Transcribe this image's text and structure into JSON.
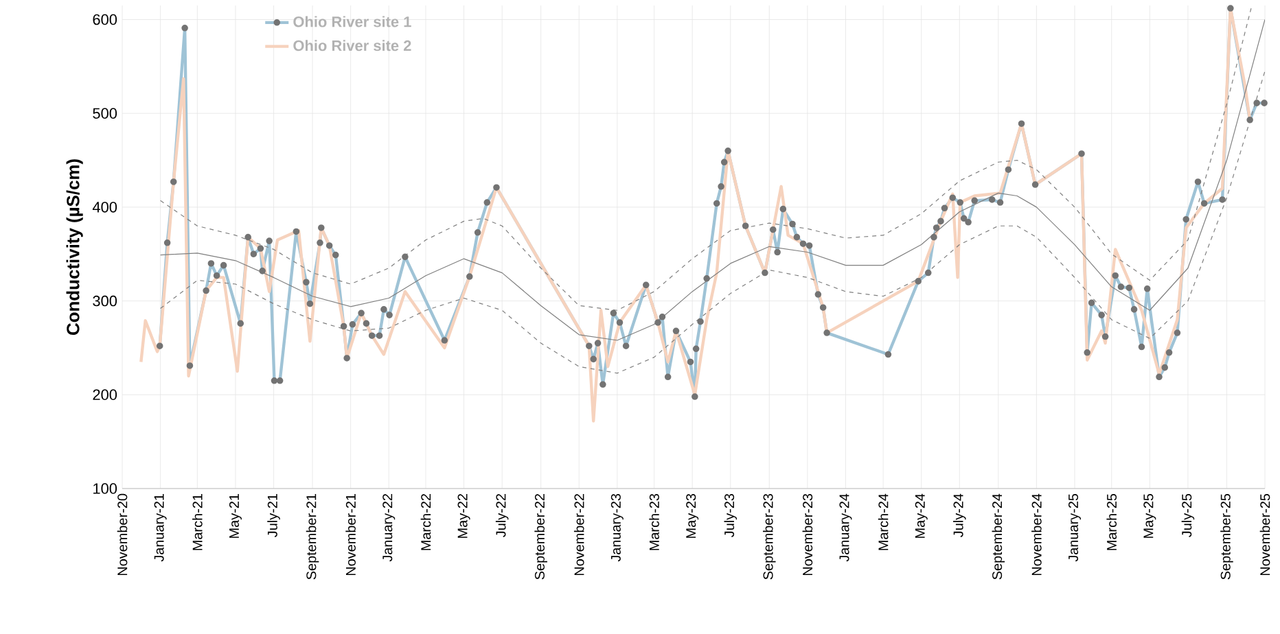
{
  "chart_data": {
    "type": "line",
    "ylabel": "Conductivity (µS/cm)",
    "grid": true,
    "legend": "top left",
    "xlim": [
      "2020-11-01",
      "2025-11-01"
    ],
    "ylim": [
      100,
      615
    ],
    "yticks": [
      100,
      200,
      300,
      400,
      500,
      600
    ],
    "xticks": [
      {
        "value": "2020-11-01",
        "label": "November-20"
      },
      {
        "value": "2021-01-01",
        "label": "January-21"
      },
      {
        "value": "2021-03-01",
        "label": "March-21"
      },
      {
        "value": "2021-05-01",
        "label": "May-21"
      },
      {
        "value": "2021-07-01",
        "label": "July-21"
      },
      {
        "value": "2021-09-01",
        "label": "September-21"
      },
      {
        "value": "2021-11-01",
        "label": "November-21"
      },
      {
        "value": "2022-01-01",
        "label": "January-22"
      },
      {
        "value": "2022-03-01",
        "label": "March-22"
      },
      {
        "value": "2022-05-01",
        "label": "May-22"
      },
      {
        "value": "2022-07-01",
        "label": "July-22"
      },
      {
        "value": "2022-09-01",
        "label": "September-22"
      },
      {
        "value": "2022-11-01",
        "label": "November-22"
      },
      {
        "value": "2023-01-01",
        "label": "January-23"
      },
      {
        "value": "2023-03-01",
        "label": "March-23"
      },
      {
        "value": "2023-05-01",
        "label": "May-23"
      },
      {
        "value": "2023-07-01",
        "label": "July-23"
      },
      {
        "value": "2023-09-01",
        "label": "September-23"
      },
      {
        "value": "2023-11-01",
        "label": "November-23"
      },
      {
        "value": "2024-01-01",
        "label": "January-24"
      },
      {
        "value": "2024-03-01",
        "label": "March-24"
      },
      {
        "value": "2024-05-01",
        "label": "May-24"
      },
      {
        "value": "2024-07-01",
        "label": "July-24"
      },
      {
        "value": "2024-09-01",
        "label": "September-24"
      },
      {
        "value": "2024-11-01",
        "label": "November-24"
      },
      {
        "value": "2025-01-01",
        "label": "January-25"
      },
      {
        "value": "2025-03-01",
        "label": "March-25"
      },
      {
        "value": "2025-05-01",
        "label": "May-25"
      },
      {
        "value": "2025-07-01",
        "label": "July-25"
      },
      {
        "value": "2025-09-01",
        "label": "September-25"
      },
      {
        "value": "2025-11-01",
        "label": "November-25"
      }
    ],
    "series": [
      {
        "name": "Ohio River site 1",
        "color": "#9fc3d6",
        "marker": "circle",
        "line_style": "solid",
        "x": [
          "2020-12-31",
          "2021-01-12",
          "2021-01-22",
          "2021-02-09",
          "2021-02-17",
          "2021-03-15",
          "2021-03-23",
          "2021-04-01",
          "2021-04-12",
          "2021-05-09",
          "2021-05-21",
          "2021-05-30",
          "2021-06-10",
          "2021-06-13",
          "2021-06-24",
          "2021-07-02",
          "2021-07-11",
          "2021-08-06",
          "2021-08-22",
          "2021-08-28",
          "2021-09-13",
          "2021-09-15",
          "2021-09-28",
          "2021-10-08",
          "2021-10-21",
          "2021-10-26",
          "2021-11-04",
          "2021-11-18",
          "2021-11-26",
          "2021-12-05",
          "2021-12-17",
          "2021-12-24",
          "2022-01-02",
          "2022-01-27",
          "2022-03-31",
          "2022-05-10",
          "2022-05-23",
          "2022-06-07",
          "2022-06-22",
          "2022-11-17",
          "2022-11-24",
          "2022-12-01",
          "2022-12-09",
          "2022-12-26",
          "2023-01-05",
          "2023-01-15",
          "2023-02-16",
          "2023-03-07",
          "2023-03-14",
          "2023-03-23",
          "2023-04-05",
          "2023-04-28",
          "2023-05-05",
          "2023-05-07",
          "2023-05-14",
          "2023-05-24",
          "2023-06-09",
          "2023-06-16",
          "2023-06-21",
          "2023-06-27",
          "2023-07-25",
          "2023-08-25",
          "2023-09-07",
          "2023-09-14",
          "2023-09-23",
          "2023-10-08",
          "2023-10-15",
          "2023-10-25",
          "2023-11-04",
          "2023-11-18",
          "2023-11-26",
          "2023-12-02",
          "2024-03-09",
          "2024-04-26",
          "2024-05-12",
          "2024-05-21",
          "2024-05-25",
          "2024-06-01",
          "2024-06-07",
          "2024-06-20",
          "2024-07-02",
          "2024-07-08",
          "2024-07-15",
          "2024-07-25",
          "2024-08-22",
          "2024-09-04",
          "2024-09-17",
          "2024-10-08",
          "2024-10-30",
          "2025-01-12",
          "2025-01-21",
          "2025-01-28",
          "2025-02-13",
          "2025-02-19",
          "2025-03-07",
          "2025-03-16",
          "2025-03-29",
          "2025-04-06",
          "2025-04-18",
          "2025-04-27",
          "2025-05-16",
          "2025-05-25",
          "2025-06-01",
          "2025-06-14",
          "2025-06-28",
          "2025-07-17",
          "2025-07-27",
          "2025-08-25",
          "2025-09-07",
          "2025-10-08",
          "2025-10-19",
          "2025-10-31"
        ],
        "values": [
          252,
          362,
          427,
          591,
          231,
          311,
          340,
          327,
          338,
          276,
          368,
          350,
          356,
          332,
          364,
          215,
          215,
          374,
          320,
          297,
          362,
          378,
          359,
          349,
          273,
          239,
          275,
          287,
          276,
          263,
          263,
          291,
          285,
          347,
          258,
          326,
          373,
          405,
          421,
          252,
          238,
          255,
          211,
          287,
          277,
          252,
          317,
          277,
          283,
          219,
          268,
          235,
          198,
          249,
          278,
          324,
          404,
          422,
          448,
          460,
          380,
          330,
          376,
          352,
          398,
          382,
          368,
          361,
          359,
          307,
          293,
          266,
          243,
          321,
          330,
          368,
          378,
          385,
          399,
          410,
          405,
          388,
          384,
          407,
          408,
          405,
          440,
          489,
          424,
          457,
          245,
          298,
          285,
          262,
          327,
          315,
          314,
          291,
          251,
          313,
          219,
          229,
          245,
          266,
          387,
          427,
          404,
          408,
          612,
          493,
          511,
          511
        ]
      },
      {
        "name": "Ohio River site 2",
        "color": "#f6d2bd",
        "marker": "none",
        "line_style": "solid",
        "x": [
          "2020-12-01",
          "2020-12-08",
          "2020-12-27",
          "2020-12-31",
          "2021-01-22",
          "2021-02-07",
          "2021-02-15",
          "2021-03-15",
          "2021-04-01",
          "2021-04-12",
          "2021-05-04",
          "2021-05-21",
          "2021-06-10",
          "2021-06-24",
          "2021-07-07",
          "2021-08-10",
          "2021-08-28",
          "2021-09-15",
          "2021-09-28",
          "2021-10-21",
          "2021-10-26",
          "2021-11-18",
          "2021-12-05",
          "2021-12-24",
          "2022-01-27",
          "2022-03-31",
          "2022-05-10",
          "2022-06-22",
          "2022-11-17",
          "2022-11-24",
          "2022-12-06",
          "2022-12-17",
          "2023-01-05",
          "2023-02-16",
          "2023-03-07",
          "2023-03-23",
          "2023-04-05",
          "2023-05-05",
          "2023-05-24",
          "2023-06-09",
          "2023-06-27",
          "2023-07-25",
          "2023-08-25",
          "2023-09-07",
          "2023-09-20",
          "2023-10-01",
          "2023-10-25",
          "2023-11-26",
          "2023-12-02",
          "2024-04-26",
          "2024-06-01",
          "2024-06-20",
          "2024-06-28",
          "2024-07-02",
          "2024-07-25",
          "2024-09-04",
          "2024-10-08",
          "2024-10-30",
          "2025-01-12",
          "2025-01-21",
          "2025-02-13",
          "2025-02-19",
          "2025-03-07",
          "2025-04-18",
          "2025-05-16",
          "2025-06-14",
          "2025-06-28",
          "2025-07-27",
          "2025-08-25",
          "2025-09-07",
          "2025-09-30",
          "2025-10-08"
        ],
        "values": [
          235,
          279,
          246,
          252,
          427,
          537,
          220,
          311,
          325,
          325,
          225,
          368,
          356,
          310,
          365,
          375,
          257,
          378,
          359,
          273,
          239,
          287,
          263,
          243,
          310,
          250,
          326,
          421,
          252,
          172,
          290,
          230,
          277,
          317,
          277,
          235,
          268,
          200,
          280,
          330,
          460,
          380,
          330,
          376,
          422,
          370,
          361,
          293,
          266,
          321,
          385,
          414,
          325,
          405,
          412,
          415,
          489,
          424,
          457,
          237,
          268,
          255,
          355,
          290,
          222,
          280,
          378,
          404,
          420,
          612,
          530,
          493
        ]
      },
      {
        "color": "#7f7f7f",
        "marker": "none",
        "line_style": "solid",
        "x": [
          "2021-01-01",
          "2021-03-01",
          "2021-05-01",
          "2021-07-01",
          "2021-09-01",
          "2021-11-01",
          "2022-01-01",
          "2022-03-01",
          "2022-05-01",
          "2022-07-01",
          "2022-09-01",
          "2022-11-01",
          "2023-01-01",
          "2023-03-01",
          "2023-05-01",
          "2023-07-01",
          "2023-09-01",
          "2023-11-01",
          "2024-01-01",
          "2024-03-01",
          "2024-05-01",
          "2024-07-01",
          "2024-09-01",
          "2024-10-01",
          "2024-11-01",
          "2025-01-01",
          "2025-03-01",
          "2025-05-01",
          "2025-07-01",
          "2025-09-01",
          "2025-11-01"
        ],
        "values": [
          349,
          351,
          343,
          325,
          305,
          294,
          303,
          327,
          345,
          330,
          295,
          264,
          258,
          275,
          310,
          340,
          358,
          352,
          338,
          338,
          360,
          395,
          415,
          412,
          400,
          360,
          315,
          290,
          335,
          450,
          600
        ]
      },
      {
        "color": "#7f7f7f",
        "marker": "none",
        "line_style": "dashed",
        "x": [
          "2021-01-01",
          "2021-03-01",
          "2021-05-01",
          "2021-07-01",
          "2021-09-01",
          "2021-11-01",
          "2022-01-01",
          "2022-03-01",
          "2022-05-01",
          "2022-06-01",
          "2022-07-01",
          "2022-09-01",
          "2022-11-01",
          "2023-01-01",
          "2023-03-01",
          "2023-05-01",
          "2023-07-01",
          "2023-09-01",
          "2023-11-01",
          "2024-01-01",
          "2024-03-01",
          "2024-05-01",
          "2024-07-01",
          "2024-09-01",
          "2024-10-01",
          "2024-11-01",
          "2025-01-01",
          "2025-03-01",
          "2025-05-01",
          "2025-07-01",
          "2025-09-01",
          "2025-10-10"
        ],
        "values": [
          407,
          380,
          370,
          355,
          330,
          318,
          335,
          365,
          385,
          388,
          380,
          335,
          295,
          290,
          310,
          345,
          375,
          383,
          377,
          367,
          370,
          393,
          428,
          448,
          450,
          440,
          400,
          350,
          322,
          365,
          510,
          612
        ]
      },
      {
        "color": "#7f7f7f",
        "marker": "none",
        "line_style": "dashed",
        "x": [
          "2021-01-01",
          "2021-03-01",
          "2021-05-01",
          "2021-07-01",
          "2021-09-01",
          "2021-11-01",
          "2022-01-01",
          "2022-03-01",
          "2022-05-01",
          "2022-07-01",
          "2022-09-01",
          "2022-11-01",
          "2023-01-01",
          "2023-03-01",
          "2023-05-01",
          "2023-07-01",
          "2023-09-01",
          "2023-11-01",
          "2024-01-01",
          "2024-03-01",
          "2024-05-01",
          "2024-07-01",
          "2024-09-01",
          "2024-10-01",
          "2024-11-01",
          "2025-01-01",
          "2025-03-01",
          "2025-05-01",
          "2025-07-01",
          "2025-09-01",
          "2025-11-01"
        ],
        "values": [
          292,
          322,
          318,
          297,
          280,
          268,
          271,
          290,
          303,
          290,
          255,
          230,
          223,
          240,
          275,
          308,
          333,
          325,
          310,
          305,
          325,
          360,
          380,
          380,
          368,
          325,
          280,
          260,
          300,
          410,
          545
        ]
      }
    ]
  }
}
